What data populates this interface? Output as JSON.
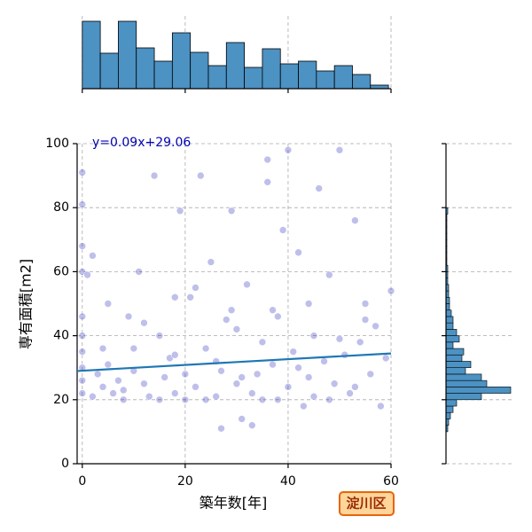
{
  "chart_data": [
    {
      "type": "scatter",
      "xlabel": "築年数[年]",
      "ylabel": "専有面積[m2]",
      "annotation": "y=0.09x+29.06",
      "annotation_box": "淀川区",
      "xlim": [
        -1,
        60
      ],
      "ylim": [
        0,
        100
      ],
      "xticks": [
        0,
        20,
        40,
        60
      ],
      "yticks": [
        0,
        20,
        40,
        60,
        80,
        100
      ],
      "grid": true,
      "color": "#0000b0",
      "fit_color": "#1f77b4",
      "fit": {
        "x": [
          -1,
          60
        ],
        "y": [
          28.97,
          34.46
        ]
      },
      "x": [
        0,
        0,
        0,
        0,
        0,
        0,
        0,
        0,
        0,
        0,
        1,
        2,
        3,
        4,
        5,
        6,
        7,
        8,
        9,
        10,
        11,
        12,
        13,
        14,
        15,
        16,
        17,
        18,
        19,
        20,
        21,
        22,
        23,
        24,
        25,
        26,
        27,
        28,
        29,
        30,
        31,
        32,
        33,
        34,
        35,
        36,
        37,
        38,
        39,
        40,
        41,
        42,
        43,
        44,
        45,
        46,
        47,
        48,
        49,
        50,
        51,
        52,
        53,
        54,
        55,
        56,
        57,
        58,
        59,
        60,
        27,
        33,
        8,
        15,
        20,
        24,
        38,
        45,
        2,
        10,
        18,
        26,
        35,
        42,
        50,
        55,
        5,
        12,
        22,
        30,
        37,
        44,
        48,
        53,
        40,
        36,
        29,
        18,
        4,
        31
      ],
      "y": [
        91,
        81,
        68,
        60,
        46,
        40,
        35,
        30,
        26,
        22,
        59,
        65,
        28,
        24,
        31,
        22,
        26,
        23,
        46,
        29,
        60,
        25,
        21,
        90,
        40,
        27,
        33,
        22,
        79,
        28,
        52,
        24,
        90,
        36,
        63,
        21,
        29,
        45,
        79,
        25,
        14,
        56,
        22,
        28,
        20,
        88,
        31,
        46,
        73,
        24,
        35,
        66,
        18,
        27,
        40,
        86,
        32,
        59,
        25,
        98,
        34,
        22,
        76,
        38,
        50,
        28,
        43,
        18,
        33,
        54,
        11,
        12,
        20,
        20,
        20,
        20,
        20,
        21,
        21,
        36,
        34,
        32,
        38,
        30,
        39,
        45,
        50,
        44,
        55,
        42,
        48,
        50,
        20,
        24,
        98,
        95,
        48,
        52,
        36,
        27
      ]
    },
    {
      "type": "histogram",
      "orientation": "vertical",
      "color": "#4c92c3",
      "bins": [
        0,
        3.5,
        7,
        10.5,
        14,
        17.5,
        21,
        24.5,
        28,
        31.5,
        35,
        38.5,
        42,
        45.5,
        49,
        52.5,
        56,
        59.5
      ],
      "counts": [
        152,
        80,
        152,
        92,
        62,
        126,
        82,
        52,
        104,
        48,
        90,
        56,
        62,
        40,
        52,
        32,
        8
      ],
      "xlim": [
        -1,
        60
      ],
      "xticks": [
        0,
        20,
        40,
        60
      ],
      "ylim": [
        0,
        152
      ],
      "grid": true
    },
    {
      "type": "histogram",
      "orientation": "horizontal",
      "color": "#4c92c3",
      "bins": [
        10,
        12,
        14,
        16,
        18,
        20,
        22,
        24,
        26,
        28,
        30,
        32,
        34,
        36,
        38,
        40,
        42,
        44,
        46,
        48,
        50,
        52,
        54,
        56,
        58,
        60,
        62,
        64,
        66,
        68,
        70,
        72,
        74,
        76,
        78,
        80,
        82,
        84,
        86,
        88,
        90,
        92,
        94,
        96,
        98,
        100
      ],
      "counts": [
        4,
        6,
        10,
        16,
        24,
        80,
        146,
        92,
        80,
        44,
        56,
        36,
        40,
        16,
        30,
        24,
        16,
        16,
        12,
        8,
        8,
        6,
        6,
        4,
        4,
        4,
        2,
        2,
        2,
        2,
        2,
        2,
        2,
        2,
        4,
        0,
        0,
        0,
        0,
        0,
        0,
        0,
        0,
        0,
        0
      ],
      "ylim": [
        0,
        100
      ],
      "yticks": [
        0,
        20,
        40,
        60,
        80,
        100
      ],
      "xlim": [
        0,
        146
      ],
      "grid": true
    }
  ]
}
